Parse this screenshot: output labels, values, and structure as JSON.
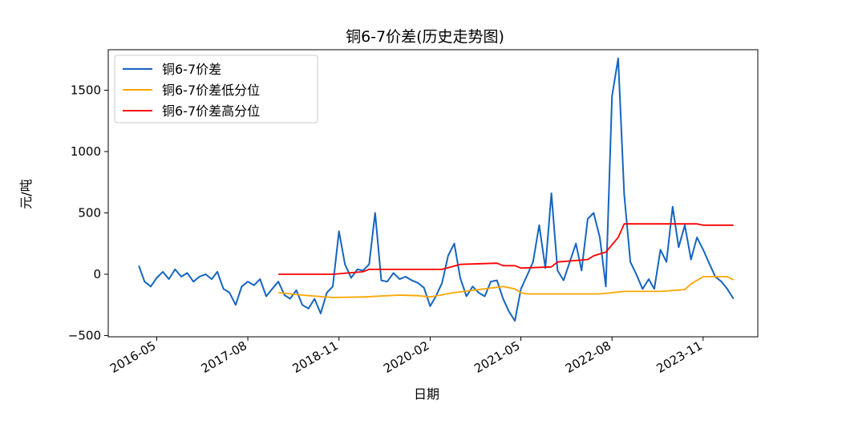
{
  "chart_data": {
    "type": "line",
    "title": "铜6-7价差(历史走势图)",
    "xlabel": "日期",
    "ylabel": "元/吨",
    "x_tick_labels": [
      "2016-05",
      "2017-08",
      "2018-11",
      "2020-02",
      "2021-05",
      "2022-08",
      "2023-11"
    ],
    "x_tick_dates": [
      "2016-05-01",
      "2017-08-01",
      "2018-11-01",
      "2020-02-01",
      "2021-05-01",
      "2022-08-01",
      "2023-11-01"
    ],
    "xlim": [
      "2015-09-01",
      "2024-08-01"
    ],
    "y_ticks": [
      -500,
      0,
      500,
      1000,
      1500
    ],
    "y_tick_labels": [
      "−500",
      "0",
      "500",
      "1000",
      "1500"
    ],
    "ylim": [
      -510,
      1830
    ],
    "legend_position": "upper left",
    "grid": false,
    "series": [
      {
        "name": "铜6-7价差",
        "color": "#1565c0",
        "x": [
          "2016-02-01",
          "2016-03-01",
          "2016-04-01",
          "2016-05-01",
          "2016-06-01",
          "2016-07-01",
          "2016-08-01",
          "2016-09-01",
          "2016-10-01",
          "2016-11-01",
          "2016-12-01",
          "2017-01-01",
          "2017-02-01",
          "2017-03-01",
          "2017-04-01",
          "2017-05-01",
          "2017-06-01",
          "2017-07-01",
          "2017-08-01",
          "2017-09-01",
          "2017-10-01",
          "2017-11-01",
          "2017-12-01",
          "2018-01-01",
          "2018-02-01",
          "2018-03-01",
          "2018-04-01",
          "2018-05-01",
          "2018-06-01",
          "2018-07-01",
          "2018-08-01",
          "2018-09-01",
          "2018-10-01",
          "2018-11-01",
          "2018-12-01",
          "2019-01-01",
          "2019-02-01",
          "2019-03-01",
          "2019-04-01",
          "2019-05-01",
          "2019-06-01",
          "2019-07-01",
          "2019-08-01",
          "2019-09-01",
          "2019-10-01",
          "2019-11-01",
          "2019-12-01",
          "2020-01-01",
          "2020-02-01",
          "2020-03-01",
          "2020-04-01",
          "2020-05-01",
          "2020-06-01",
          "2020-07-01",
          "2020-08-01",
          "2020-09-01",
          "2020-10-01",
          "2020-11-01",
          "2020-12-01",
          "2021-01-01",
          "2021-02-01",
          "2021-03-01",
          "2021-04-01",
          "2021-05-01",
          "2021-06-01",
          "2021-07-01",
          "2021-08-01",
          "2021-09-01",
          "2021-10-01",
          "2021-11-01",
          "2021-12-01",
          "2022-01-01",
          "2022-02-01",
          "2022-03-01",
          "2022-04-01",
          "2022-05-01",
          "2022-06-01",
          "2022-07-01",
          "2022-08-01",
          "2022-09-01",
          "2022-10-01",
          "2022-11-01",
          "2022-12-01",
          "2023-01-01",
          "2023-02-01",
          "2023-03-01",
          "2023-04-01",
          "2023-05-01",
          "2023-06-01",
          "2023-07-01",
          "2023-08-01",
          "2023-09-01",
          "2023-10-01",
          "2023-11-01",
          "2023-12-01",
          "2024-01-01",
          "2024-02-01",
          "2024-03-01",
          "2024-04-01"
        ],
        "y": [
          70,
          -60,
          -100,
          -30,
          20,
          -40,
          40,
          -20,
          10,
          -60,
          -20,
          0,
          -40,
          20,
          -120,
          -150,
          -250,
          -100,
          -60,
          -90,
          -40,
          -180,
          -120,
          -60,
          -170,
          -200,
          -130,
          -250,
          -280,
          -200,
          -320,
          -150,
          -100,
          350,
          80,
          -30,
          40,
          30,
          80,
          500,
          -50,
          -60,
          10,
          -40,
          -20,
          -50,
          -70,
          -110,
          -260,
          -180,
          -70,
          150,
          250,
          -30,
          -180,
          -100,
          -150,
          -180,
          -60,
          -50,
          -200,
          -300,
          -380,
          -120,
          -10,
          100,
          400,
          50,
          660,
          30,
          -50,
          100,
          250,
          30,
          450,
          500,
          300,
          -100,
          1450,
          1760,
          650,
          100,
          0,
          -120,
          -40,
          -120,
          200,
          100,
          550,
          220,
          400,
          120,
          300,
          200,
          90,
          -20,
          -60,
          -120,
          -200
        ]
      },
      {
        "name": "铜6-7价差低分位",
        "color": "#ffa500",
        "x": [
          "2018-01-01",
          "2018-05-01",
          "2018-10-01",
          "2019-03-01",
          "2019-09-01",
          "2019-12-01",
          "2020-02-01",
          "2020-06-01",
          "2021-02-01",
          "2021-04-01",
          "2021-05-01",
          "2021-06-01",
          "2022-06-01",
          "2022-10-01",
          "2022-11-01",
          "2023-04-01",
          "2023-08-01",
          "2023-09-01",
          "2023-11-01",
          "2024-03-01",
          "2024-04-01"
        ],
        "y": [
          -150,
          -170,
          -190,
          -185,
          -170,
          -175,
          -185,
          -150,
          -100,
          -120,
          -150,
          -160,
          -160,
          -140,
          -140,
          -140,
          -125,
          -80,
          -20,
          -20,
          -45
        ]
      },
      {
        "name": "铜6-7价差高分位",
        "color": "#ff0000",
        "x": [
          "2018-01-01",
          "2018-10-01",
          "2019-03-01",
          "2019-04-01",
          "2020-04-01",
          "2020-07-01",
          "2021-01-01",
          "2021-02-01",
          "2021-04-01",
          "2021-05-01",
          "2021-10-01",
          "2021-11-01",
          "2022-04-01",
          "2022-05-01",
          "2022-07-01",
          "2022-09-01",
          "2022-10-01",
          "2023-10-01",
          "2023-11-01",
          "2024-04-01"
        ],
        "y": [
          0,
          0,
          20,
          40,
          40,
          80,
          90,
          70,
          70,
          50,
          60,
          100,
          120,
          150,
          180,
          300,
          410,
          410,
          400,
          400
        ]
      }
    ]
  }
}
